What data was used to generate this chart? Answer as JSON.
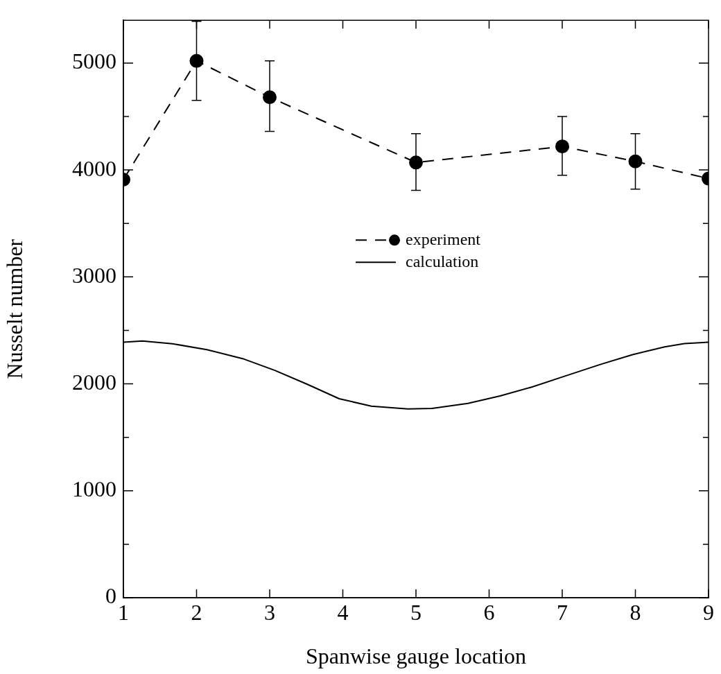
{
  "chart_data": {
    "type": "line",
    "xlabel": "Spanwise gauge location",
    "ylabel": "Nusselt number",
    "xlim": [
      1,
      9
    ],
    "xticks": [
      1,
      2,
      3,
      4,
      5,
      6,
      7,
      8,
      9
    ],
    "ylim": [
      0,
      5400
    ],
    "yticks": [
      0,
      {
        "value": 500,
        "label": null
      },
      1000,
      {
        "value": 1500,
        "label": null
      },
      2000,
      {
        "value": 2500,
        "label": null
      },
      3000,
      {
        "value": 3500,
        "label": null
      },
      4000,
      {
        "value": 4500,
        "label": null
      },
      5000
    ],
    "grid": false,
    "legend": "top",
    "series": [
      {
        "name": "experiment",
        "color": "#000000",
        "marker": "circle",
        "line_style": "dashed",
        "x": [
          1,
          2,
          3,
          5,
          7,
          8,
          9
        ],
        "values": [
          3910,
          5020,
          4680,
          4070,
          4220,
          4080,
          3920
        ],
        "errors": [
          null,
          [
            4650,
            5390
          ],
          [
            4360,
            5020
          ],
          [
            3810,
            4340
          ],
          [
            3950,
            4500
          ],
          [
            3820,
            4340
          ],
          null
        ]
      },
      {
        "name": "calculation",
        "color": "#000000",
        "marker": "none",
        "line_style": "solid",
        "x": [
          1,
          1.26,
          1.67,
          2.14,
          2.63,
          3.07,
          3.51,
          3.95,
          4.39,
          4.89,
          5.22,
          5.71,
          6.15,
          6.59,
          7.03,
          7.52,
          7.96,
          8.4,
          8.67,
          9
        ],
        "values": [
          2390,
          2400,
          2375,
          2320,
          2236,
          2126,
          1997,
          1861,
          1791,
          1766,
          1770,
          1817,
          1887,
          1971,
          2071,
          2181,
          2273,
          2346,
          2376,
          2390
        ]
      }
    ]
  }
}
